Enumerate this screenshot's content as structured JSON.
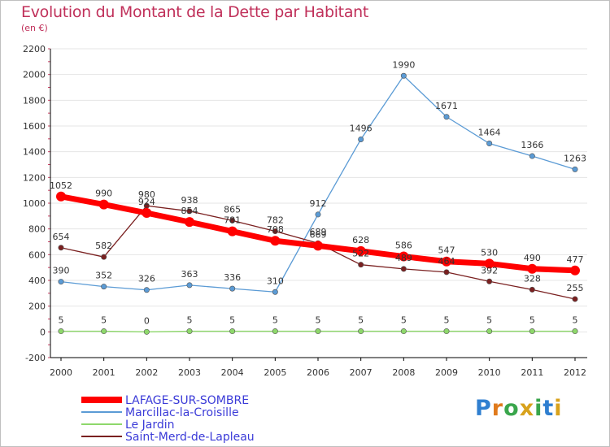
{
  "chart_data": {
    "type": "line",
    "title": "Evolution du Montant de la Dette par Habitant",
    "subtitle": "(en €)",
    "x": [
      "2000",
      "2001",
      "2002",
      "2003",
      "2004",
      "2005",
      "2006",
      "2007",
      "2008",
      "2009",
      "2010",
      "2011",
      "2012"
    ],
    "ylim": [
      -200,
      2200
    ],
    "yticks": [
      -200,
      0,
      200,
      400,
      600,
      800,
      1000,
      1200,
      1400,
      1600,
      1800,
      2000,
      2200
    ],
    "grid": true,
    "legend_position": "bottom-left",
    "series": [
      {
        "name": "LAFAGE-SUR-SOMBRE",
        "color": "#ff0000",
        "values": [
          1052,
          990,
          924,
          854,
          781,
          708,
          669,
          628,
          586,
          547,
          530,
          490,
          477
        ]
      },
      {
        "name": "Marcillac-la-Croisille",
        "color": "#5b9bd5",
        "values": [
          390,
          352,
          326,
          363,
          336,
          310,
          912,
          1496,
          1990,
          1671,
          1464,
          1366,
          1263
        ]
      },
      {
        "name": "Le Jardin",
        "color": "#8ed86b",
        "values": [
          5,
          5,
          0,
          5,
          5,
          5,
          5,
          5,
          5,
          5,
          5,
          5,
          5
        ]
      },
      {
        "name": "Saint-Merd-de-Lapleau",
        "color": "#7a2020",
        "values": [
          654,
          582,
          980,
          938,
          865,
          782,
          689,
          522,
          489,
          464,
          392,
          328,
          255
        ]
      }
    ]
  },
  "logo": {
    "text": "Proxiti"
  }
}
